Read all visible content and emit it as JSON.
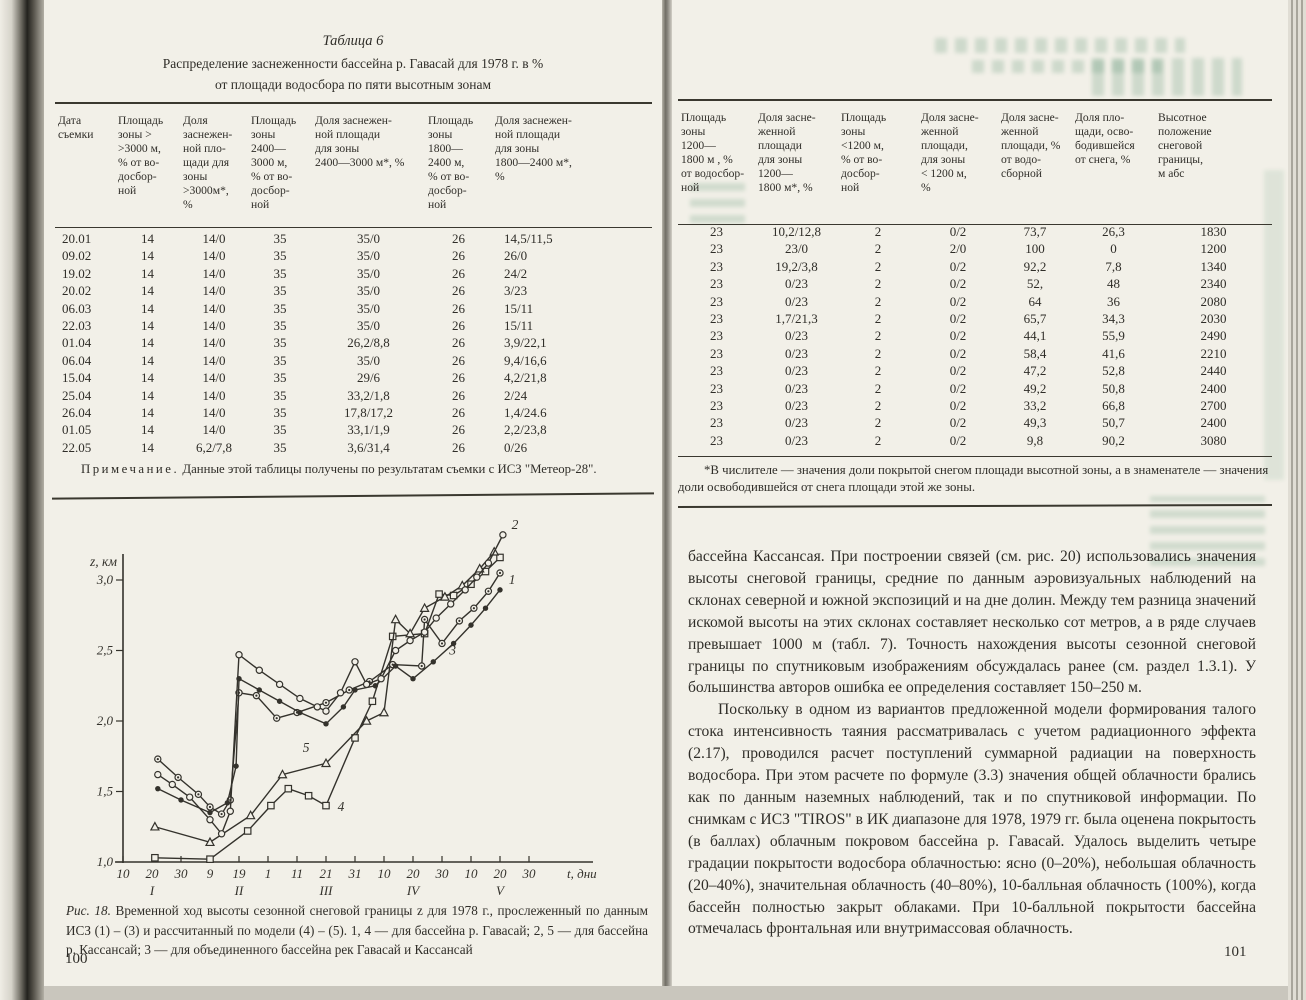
{
  "left_page": {
    "table_label": "Таблица 6",
    "table_title_line1": "Распределение заснеженности бассейна р. Гавасай для 1978 г. в %",
    "table_title_line2": "от площади водосбора по пяти высотным зонам",
    "table": {
      "headers": [
        "Дата\nсъемки",
        "Площадь\nзоны >\n>3000 м,\n% от во-\nдосбор-\nной",
        "Доля\nзаснежен-\nной пло-\nщади для\nзоны\n>3000м*,\n%",
        "Площадь\nзоны\n2400—\n3000 м,\n% от во-\nдосбор-\nной",
        "Доля заснежен-\nной площади\nдля зоны\n2400—3000 м*, %",
        "Площадь\nзоны\n1800—\n2400 м,\n% от во-\nдосбор-\nной",
        "Доля заснежен-\nной площади\nдля зоны\n1800—2400 м*,\n%"
      ],
      "rows": [
        [
          "20.01",
          "14",
          "14/0",
          "35",
          "35/0",
          "26",
          "14,5/11,5"
        ],
        [
          "09.02",
          "14",
          "14/0",
          "35",
          "35/0",
          "26",
          "26/0"
        ],
        [
          "19.02",
          "14",
          "14/0",
          "35",
          "35/0",
          "26",
          "24/2"
        ],
        [
          "20.02",
          "14",
          "14/0",
          "35",
          "35/0",
          "26",
          "3/23"
        ],
        [
          "06.03",
          "14",
          "14/0",
          "35",
          "35/0",
          "26",
          "15/11"
        ],
        [
          "22.03",
          "14",
          "14/0",
          "35",
          "35/0",
          "26",
          "15/11"
        ],
        [
          "01.04",
          "14",
          "14/0",
          "35",
          "26,2/8,8",
          "26",
          "3,9/22,1"
        ],
        [
          "06.04",
          "14",
          "14/0",
          "35",
          "35/0",
          "26",
          "9,4/16,6"
        ],
        [
          "15.04",
          "14",
          "14/0",
          "35",
          "29/6",
          "26",
          "4,2/21,8"
        ],
        [
          "25.04",
          "14",
          "14/0",
          "35",
          "33,2/1,8",
          "26",
          "2/24"
        ],
        [
          "26.04",
          "14",
          "14/0",
          "35",
          "17,8/17,2",
          "26",
          "1,4/24.6"
        ],
        [
          "01.05",
          "14",
          "14/0",
          "35",
          "33,1/1,9",
          "26",
          "2,2/23,8"
        ],
        [
          "22.05",
          "14",
          "6,2/7,8",
          "35",
          "3,6/31,4",
          "26",
          "0/26"
        ]
      ]
    },
    "note_label": "Примечание.",
    "note_text": " Данные этой таблицы получены по результатам съемки с ИСЗ \"Метеор-28\".",
    "figure_label": "Рис. 18.",
    "figure_caption": " Временной ход высоты сезонной снеговой границы z для 1978 г., прослеженный по данным ИСЗ (1) – (3) и рассчитанный по модели (4) – (5). 1, 4 — для бассейна р. Гавасай; 2, 5 — для бассейна р. Кассансай; 3 — для объединенного бассейна рек Гавасай и Кассансай",
    "page_number": "100"
  },
  "right_page": {
    "table": {
      "headers": [
        "Площадь\nзоны\n1200—\n1800 м , %\nот водосбор-\nной",
        "Доля засне-\nженной\nплощади\nдля зоны\n1200—\n1800 м*, %",
        "Площадь\nзоны\n<1200 м,\n% от во-\nдосбор-\nной",
        "Доля засне-\nженной\nплощади,\nдля зоны\n< 1200 м,\n%",
        "Доля засне-\nженной\nплощади, %\nот водо-\nсборной",
        "Доля пло-\nщади, осво-\nбодившейся\nот снега, %",
        "Высотное\nположение\nснеговой\nграницы,\nм абс"
      ],
      "rows": [
        [
          "23",
          "10,2/12,8",
          "2",
          "0/2",
          "73,7",
          "26,3",
          "1830"
        ],
        [
          "23",
          "23/0",
          "2",
          "2/0",
          "100",
          "0",
          "1200"
        ],
        [
          "23",
          "19,2/3,8",
          "2",
          "0/2",
          "92,2",
          "7,8",
          "1340"
        ],
        [
          "23",
          "0/23",
          "2",
          "0/2",
          "52,",
          "48",
          "2340"
        ],
        [
          "23",
          "0/23",
          "2",
          "0/2",
          "64",
          "36",
          "2080"
        ],
        [
          "23",
          "1,7/21,3",
          "2",
          "0/2",
          "65,7",
          "34,3",
          "2030"
        ],
        [
          "23",
          "0/23",
          "2",
          "0/2",
          "44,1",
          "55,9",
          "2490"
        ],
        [
          "23",
          "0/23",
          "2",
          "0/2",
          "58,4",
          "41,6",
          "2210"
        ],
        [
          "23",
          "0/23",
          "2",
          "0/2",
          "47,2",
          "52,8",
          "2440"
        ],
        [
          "23",
          "0/23",
          "2",
          "0/2",
          "49,2",
          "50,8",
          "2400"
        ],
        [
          "23",
          "0/23",
          "2",
          "0/2",
          "33,2",
          "66,8",
          "2700"
        ],
        [
          "23",
          "0/23",
          "2",
          "0/2",
          "49,3",
          "50,7",
          "2400"
        ],
        [
          "23",
          "0/23",
          "2",
          "0/2",
          "9,8",
          "90,2",
          "3080"
        ]
      ]
    },
    "footnote": "*В числителе — значения доли покрытой снегом площади высотной зоны, а в знаменателе — значения доли освободившейся от снега площади этой же зоны.",
    "paragraphs": {
      "p1": "бассейна Кассансая. При построении связей (см. рис. 20) использовались значения высоты снеговой границы, средние по данным аэровизуальных наблюдений на склонах северной и южной экспозиций и на дне долин. Между тем разница значений искомой высоты на этих склонах составляет несколько сот метров, а в ряде случаев превышает 1000 м (табл. 7). Точность нахождения высоты сезонной снеговой границы по спутниковым изображениям обсуждалась ранее (см. раздел 1.3.1). У большинства авторов ошибка ее определения составляет 150–250 м.",
      "p2": "Поскольку в одном из вариантов предложенной модели формирования талого стока интенсивность таяния рассматривалась с учетом радиационного эффекта (2.17), проводился расчет поступлений суммарной радиации на поверхность водосбора. При этом расчете по формуле (3.3) значения общей облачности брались как по данным наземных наблюдений, так и по спутниковой информации. По снимкам с ИСЗ \"TIROS\" в ИК диапазоне для 1978, 1979 гг. была оценена покрытость (в баллах) облачным покровом бассейна р. Гавасай. Удалось выделить четыре градации покрытости водосбора облачностью: ясно (0–20%), небольшая облачность (20–40%), значительная облачность (40–80%), 10-балльная облачность (100%), когда бассейн полностью закрыт облаками. При 10-балльной покрытости бассейна отмечалась фронтальная или внутримассовая облачность."
    },
    "page_number": "101"
  },
  "chart_data": {
    "type": "line",
    "figure": "Рис. 18",
    "xlabel": "t, дни",
    "ylabel": "z, км",
    "ink": "#34322c",
    "paper": "#f2f0e8",
    "x_axis": {
      "unit": "день года, 1978",
      "ticks": [
        {
          "day": 10,
          "label": "10"
        },
        {
          "day": 20,
          "label": "20"
        },
        {
          "day": 30,
          "label": "30"
        },
        {
          "day": 40,
          "label": "9"
        },
        {
          "day": 50,
          "label": "19"
        },
        {
          "day": 60,
          "label": "1"
        },
        {
          "day": 70,
          "label": "11"
        },
        {
          "day": 80,
          "label": "21"
        },
        {
          "day": 90,
          "label": "31"
        },
        {
          "day": 100,
          "label": "10"
        },
        {
          "day": 110,
          "label": "20"
        },
        {
          "day": 120,
          "label": "30"
        },
        {
          "day": 130,
          "label": "10"
        },
        {
          "day": 140,
          "label": "20"
        },
        {
          "day": 150,
          "label": "30"
        }
      ],
      "months": [
        {
          "day": 20,
          "label": "I"
        },
        {
          "day": 50,
          "label": "II"
        },
        {
          "day": 80,
          "label": "III"
        },
        {
          "day": 110,
          "label": "IV"
        },
        {
          "day": 140,
          "label": "V"
        }
      ]
    },
    "y_axis": {
      "range": [
        1.0,
        3.45
      ],
      "ticks": [
        {
          "value": 1.0,
          "label": "1,0"
        },
        {
          "value": 1.5,
          "label": "1,5"
        },
        {
          "value": 2.0,
          "label": "2,0"
        },
        {
          "value": 2.5,
          "label": "2,5"
        },
        {
          "value": 3.0,
          "label": "3,0"
        }
      ]
    },
    "series": [
      {
        "name": "4",
        "legend": "бассейн р. Гавасай — расчет по модели",
        "marker": "open-square",
        "label_pos": [
          84,
          1.36
        ],
        "points": [
          [
            21,
            1.03
          ],
          [
            40,
            1.02
          ],
          [
            53,
            1.22
          ],
          [
            61,
            1.4
          ],
          [
            67,
            1.52
          ],
          [
            74,
            1.47
          ],
          [
            80,
            1.4
          ],
          [
            90,
            1.88
          ],
          [
            96,
            2.14
          ],
          [
            103,
            2.6
          ],
          [
            114,
            2.62
          ],
          [
            119,
            2.9
          ],
          [
            124,
            2.89
          ],
          [
            130,
            2.97
          ],
          [
            135,
            3.06
          ],
          [
            140,
            3.16
          ]
        ]
      },
      {
        "name": "5",
        "legend": "бассейн р. Кассансай — расчет по модели",
        "marker": "open-triangle",
        "label_pos": [
          72,
          1.78
        ],
        "points": [
          [
            21,
            1.25
          ],
          [
            40,
            1.14
          ],
          [
            54,
            1.33
          ],
          [
            65,
            1.62
          ],
          [
            80,
            1.7
          ],
          [
            94,
            2.0
          ],
          [
            100,
            2.06
          ],
          [
            104,
            2.72
          ],
          [
            109,
            2.62
          ],
          [
            114,
            2.8
          ],
          [
            121,
            2.88
          ],
          [
            127,
            2.96
          ],
          [
            133,
            3.08
          ],
          [
            138,
            3.2
          ]
        ]
      },
      {
        "name": "3",
        "legend": "объединенный бассейн рек Гавасай и Кассансай — по данным ИСЗ",
        "marker": "dot-circle",
        "label_pos": [
          122.5,
          2.47
        ],
        "points": [
          [
            22,
            1.73
          ],
          [
            29,
            1.6
          ],
          [
            36,
            1.48
          ],
          [
            40,
            1.39
          ],
          [
            44,
            1.34
          ],
          [
            47,
            1.44
          ],
          [
            50,
            2.2
          ],
          [
            56,
            2.18
          ],
          [
            63,
            2.02
          ],
          [
            70,
            2.06
          ],
          [
            80,
            2.13
          ],
          [
            88,
            2.22
          ],
          [
            95,
            2.28
          ],
          [
            103,
            2.4
          ],
          [
            113,
            2.39
          ],
          [
            114,
            2.72
          ],
          [
            120,
            2.55
          ],
          [
            126,
            2.71
          ],
          [
            131,
            2.8
          ],
          [
            136,
            2.92
          ],
          [
            140,
            3.05
          ]
        ]
      },
      {
        "name": "1",
        "legend": "бассейн р. Гавасай — по данным ИСЗ",
        "marker": "filled-circle",
        "label_pos": [
          143,
          2.97
        ],
        "points": [
          [
            22,
            1.52
          ],
          [
            30,
            1.44
          ],
          [
            40,
            1.35
          ],
          [
            46,
            1.42
          ],
          [
            49,
            1.68
          ],
          [
            50,
            2.3
          ],
          [
            57,
            2.22
          ],
          [
            64,
            2.14
          ],
          [
            71,
            2.06
          ],
          [
            80,
            1.98
          ],
          [
            86,
            2.1
          ],
          [
            90,
            2.22
          ],
          [
            97,
            2.25
          ],
          [
            104,
            2.39
          ],
          [
            110,
            2.3
          ],
          [
            117,
            2.42
          ],
          [
            124,
            2.55
          ],
          [
            130,
            2.68
          ],
          [
            135,
            2.8
          ],
          [
            140,
            2.93
          ]
        ]
      },
      {
        "name": "2",
        "legend": "бассейн р. Кассансай — по данным ИСЗ",
        "marker": "open-circle",
        "label_pos": [
          144,
          3.36
        ],
        "points": [
          [
            22,
            1.62
          ],
          [
            27,
            1.55
          ],
          [
            33,
            1.46
          ],
          [
            40,
            1.3
          ],
          [
            44,
            1.2
          ],
          [
            47,
            1.36
          ],
          [
            50,
            2.47
          ],
          [
            57,
            2.36
          ],
          [
            64,
            2.26
          ],
          [
            71,
            2.16
          ],
          [
            77,
            2.1
          ],
          [
            80,
            2.07
          ],
          [
            85,
            2.2
          ],
          [
            90,
            2.42
          ],
          [
            94,
            2.26
          ],
          [
            99,
            2.3
          ],
          [
            104,
            2.5
          ],
          [
            109,
            2.57
          ],
          [
            114,
            2.63
          ],
          [
            118,
            2.73
          ],
          [
            123,
            2.83
          ],
          [
            128,
            2.93
          ],
          [
            132,
            3.02
          ],
          [
            136,
            3.12
          ],
          [
            141,
            3.32
          ]
        ]
      }
    ]
  }
}
